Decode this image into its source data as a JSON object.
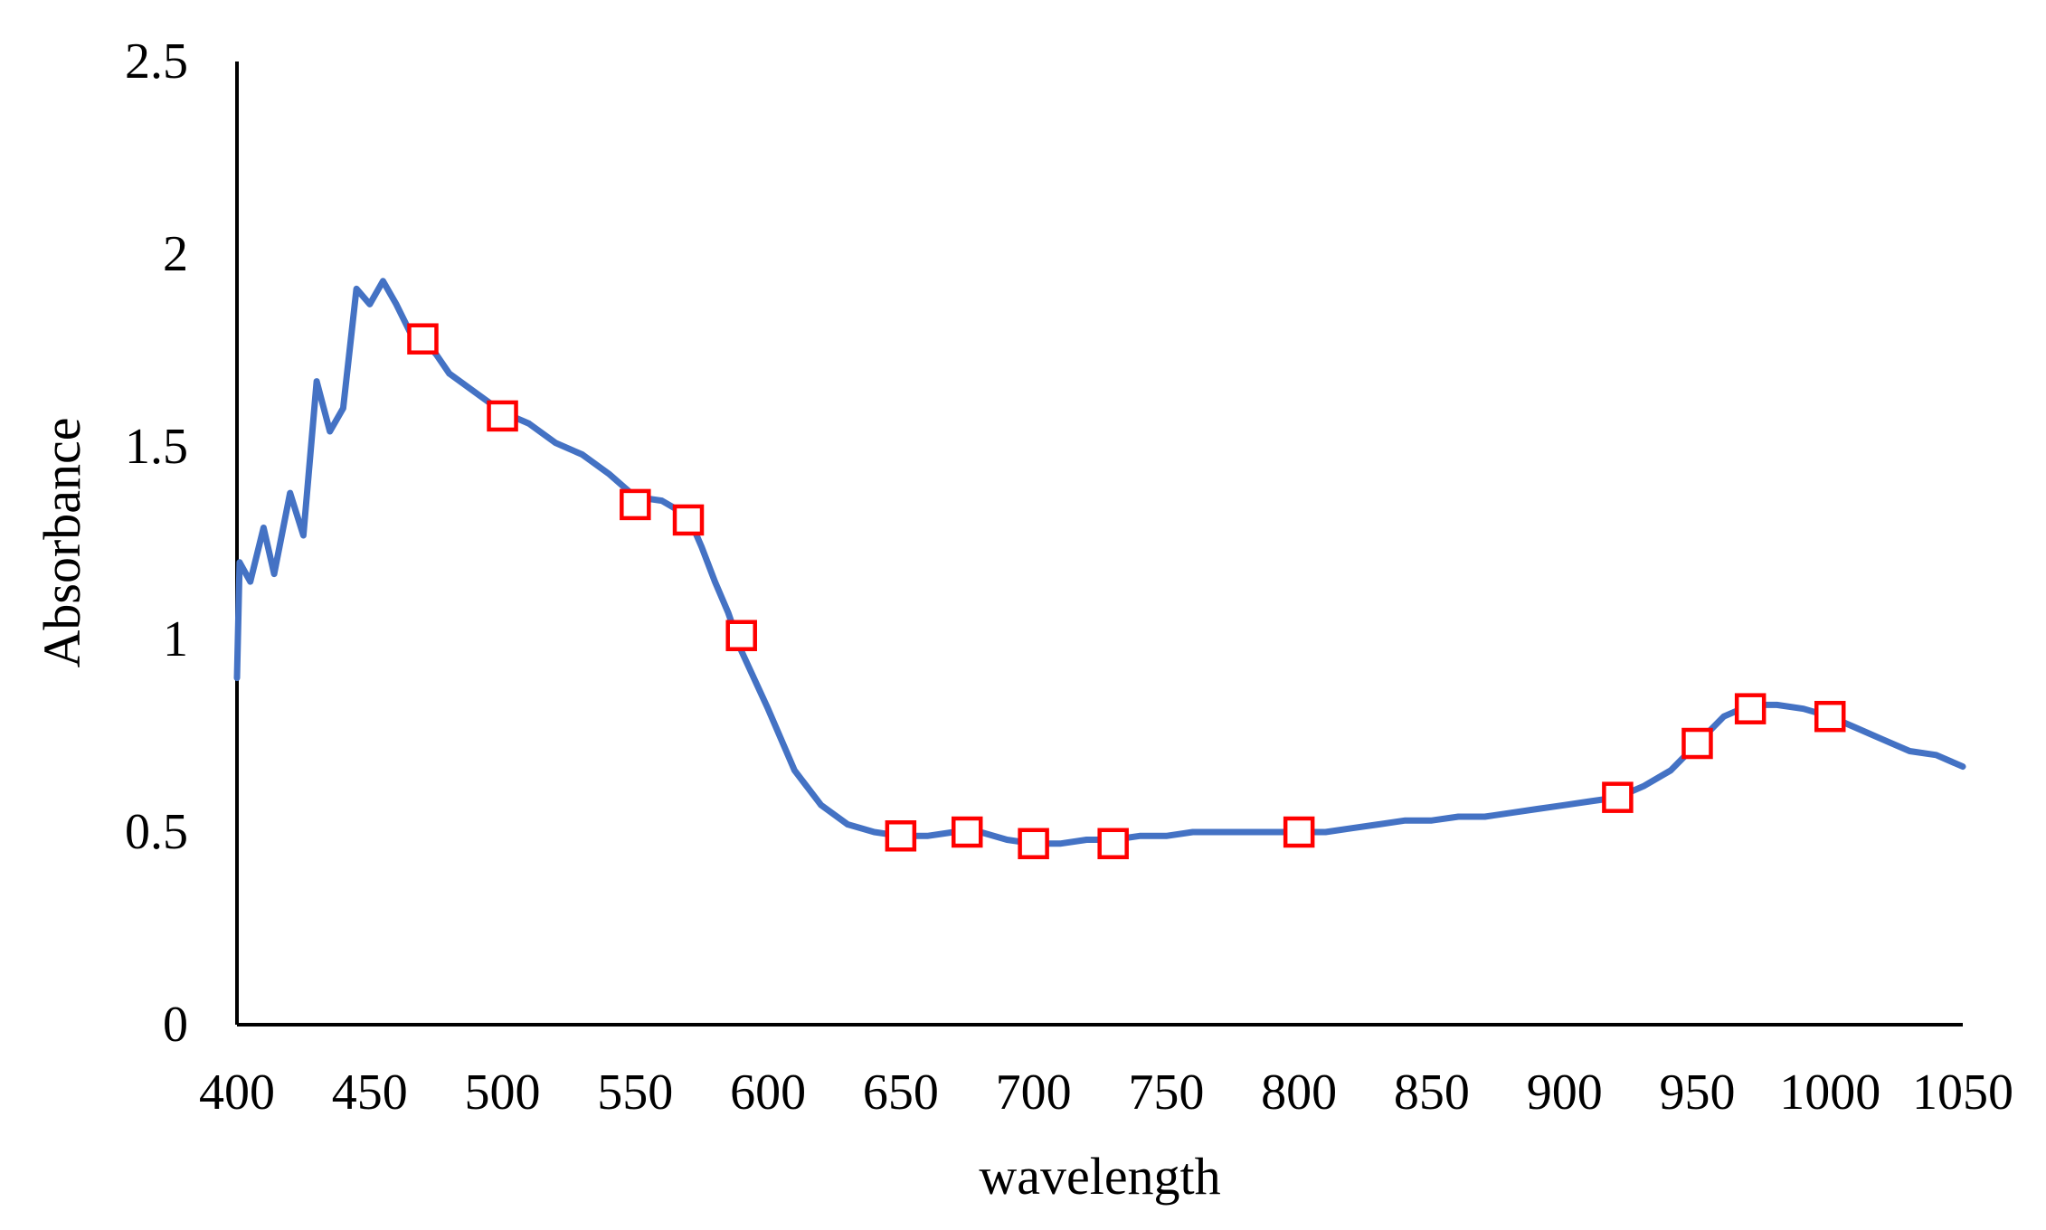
{
  "chart_data": {
    "type": "line",
    "xlabel": "wavelength",
    "ylabel": "Absorbance",
    "xlim": [
      400,
      1050
    ],
    "ylim": [
      0,
      2.5
    ],
    "grid": false,
    "x_ticks": [
      400,
      450,
      500,
      550,
      600,
      650,
      700,
      750,
      800,
      850,
      900,
      950,
      1000,
      1050
    ],
    "y_ticks": [
      0,
      0.5,
      1,
      1.5,
      2,
      2.5
    ],
    "x_tick_labels": [
      "400",
      "450",
      "500",
      "550",
      "600",
      "650",
      "700",
      "750",
      "800",
      "850",
      "900",
      "950",
      "1000",
      "1050"
    ],
    "y_tick_labels": [
      "0",
      "0.5",
      "1",
      "1.5",
      "2",
      "2.5"
    ],
    "series": [
      {
        "color": "#4472c4",
        "x": [
          400,
          401,
          405,
          410,
          414,
          420,
          425,
          430,
          435,
          440,
          445,
          450,
          455,
          460,
          465,
          470,
          475,
          480,
          490,
          500,
          510,
          520,
          530,
          540,
          550,
          560,
          570,
          575,
          580,
          585,
          590,
          600,
          610,
          620,
          630,
          640,
          650,
          660,
          670,
          675,
          680,
          690,
          700,
          710,
          720,
          730,
          740,
          750,
          760,
          770,
          780,
          790,
          800,
          810,
          820,
          830,
          840,
          850,
          860,
          870,
          880,
          890,
          900,
          910,
          920,
          930,
          940,
          950,
          960,
          970,
          980,
          990,
          1000,
          1010,
          1020,
          1030,
          1040,
          1050
        ],
        "y": [
          0.9,
          1.2,
          1.15,
          1.29,
          1.17,
          1.38,
          1.27,
          1.67,
          1.54,
          1.6,
          1.91,
          1.87,
          1.93,
          1.87,
          1.8,
          1.78,
          1.74,
          1.69,
          1.64,
          1.59,
          1.56,
          1.51,
          1.48,
          1.43,
          1.37,
          1.36,
          1.32,
          1.24,
          1.15,
          1.07,
          0.97,
          0.82,
          0.66,
          0.57,
          0.52,
          0.5,
          0.49,
          0.49,
          0.5,
          0.51,
          0.5,
          0.48,
          0.47,
          0.47,
          0.48,
          0.48,
          0.49,
          0.49,
          0.5,
          0.5,
          0.5,
          0.5,
          0.5,
          0.5,
          0.51,
          0.52,
          0.53,
          0.53,
          0.54,
          0.54,
          0.55,
          0.56,
          0.57,
          0.58,
          0.59,
          0.62,
          0.66,
          0.73,
          0.8,
          0.83,
          0.83,
          0.82,
          0.8,
          0.77,
          0.74,
          0.71,
          0.7,
          0.67
        ]
      }
    ],
    "markers": {
      "shape": "square",
      "color": "#ff0000",
      "x": [
        470,
        500,
        550,
        570,
        590,
        650,
        675,
        700,
        730,
        800,
        920,
        950,
        970,
        1000
      ],
      "y": [
        1.78,
        1.58,
        1.35,
        1.31,
        1.01,
        0.49,
        0.5,
        0.47,
        0.47,
        0.5,
        0.59,
        0.73,
        0.82,
        0.8
      ]
    }
  }
}
